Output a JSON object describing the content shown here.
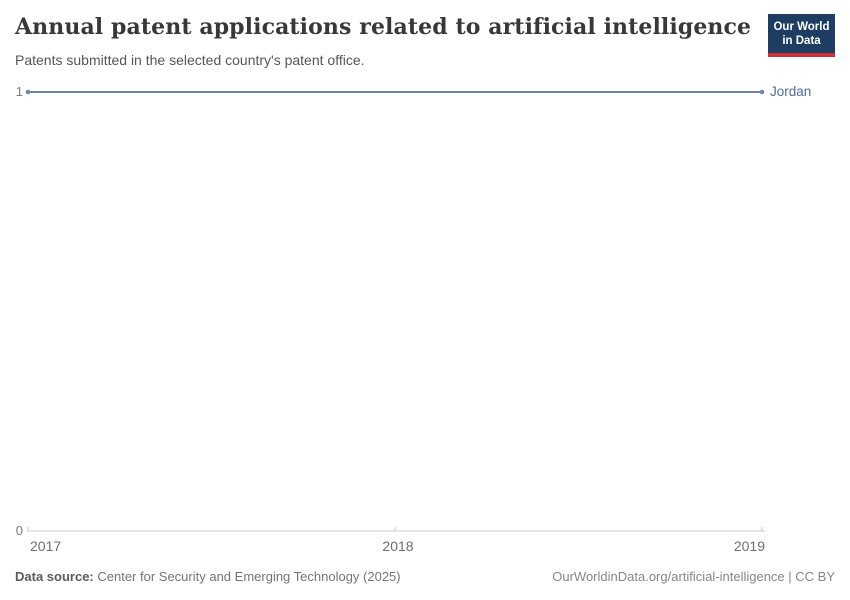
{
  "header": {
    "title": "Annual patent applications related to artificial intelligence",
    "subtitle": "Patents submitted in the selected country's patent office.",
    "logo": {
      "line1": "Our World",
      "line2": "in Data",
      "bg_color": "#1d3d63",
      "accent_color": "#cf3235"
    }
  },
  "chart_data": {
    "type": "line",
    "x": [
      2017,
      2018,
      2019
    ],
    "series": [
      {
        "name": "Jordan",
        "values": [
          1,
          1,
          1
        ],
        "color": "#6f86a7",
        "label_color": "#4c6a9c"
      }
    ],
    "title": "Annual patent applications related to artificial intelligence",
    "xlabel": "",
    "ylabel": "",
    "ylim": [
      0,
      1
    ],
    "yticks": [
      0,
      1
    ],
    "xticks": [
      2017,
      2018,
      2019
    ],
    "grid": false,
    "legend_position": "end-of-line",
    "axis_color": "#c8c8c8"
  },
  "footer": {
    "datasource_label": "Data source:",
    "datasource_value": " Center for Security and Emerging Technology (2025)",
    "attribution": "OurWorldinData.org/artificial-intelligence | CC BY"
  }
}
